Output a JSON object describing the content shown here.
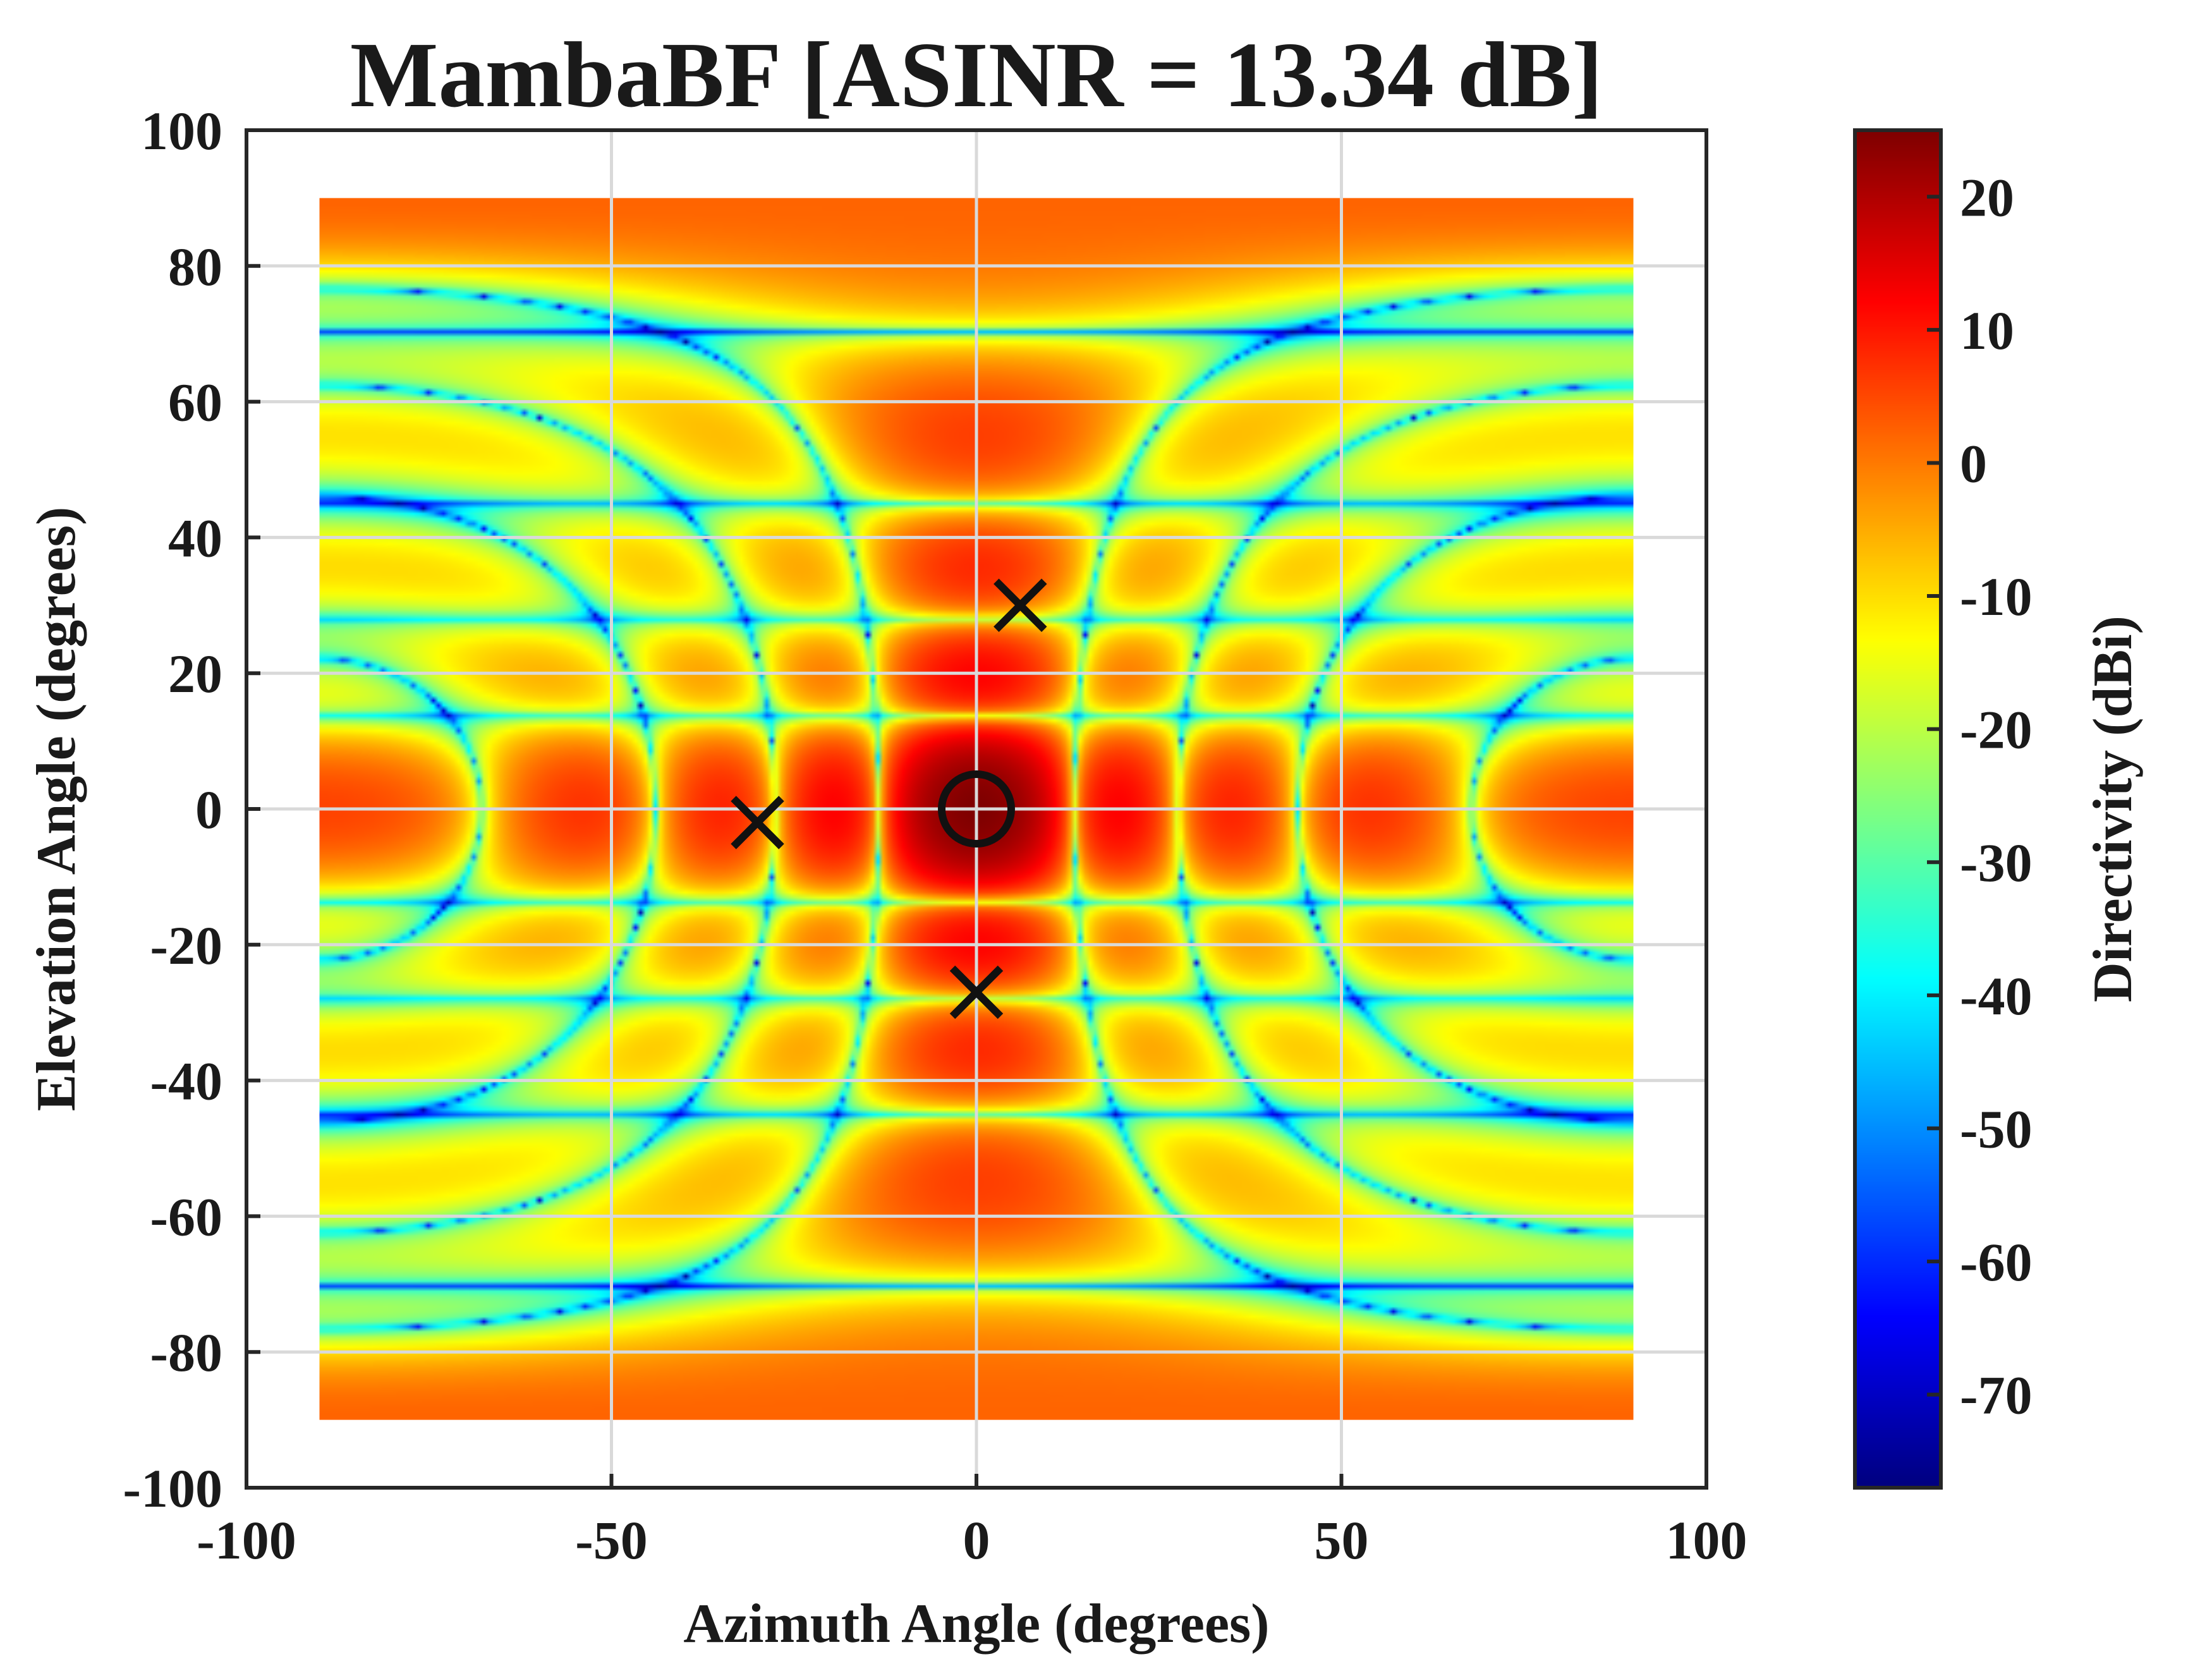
{
  "chart_data": {
    "type": "heatmap",
    "title": "MambaBF [ASINR = 13.34 dB]",
    "xlabel": "Azimuth Angle (degrees)",
    "ylabel": "Elevation Angle (degrees)",
    "xlim": [
      -100,
      100
    ],
    "ylim": [
      -100,
      100
    ],
    "x_ticks": [
      -100,
      -50,
      0,
      50,
      100
    ],
    "y_ticks": [
      -100,
      -80,
      -60,
      -40,
      -20,
      0,
      20,
      40,
      60,
      80,
      100
    ],
    "grid": true,
    "data_extent": {
      "azimuth": [
        -90,
        90
      ],
      "elevation": [
        -90,
        90
      ]
    },
    "colorbar": {
      "label": "Directivity (dBi)",
      "range": [
        -77,
        25
      ],
      "ticks": [
        20,
        10,
        0,
        -10,
        -20,
        -30,
        -40,
        -50,
        -60,
        -70
      ],
      "colormap": "jet",
      "colors": [
        "#00007f",
        "#0000ff",
        "#007fff",
        "#00ffff",
        "#7fff7f",
        "#ffff00",
        "#ff7f00",
        "#ff0000",
        "#7f0000"
      ]
    },
    "main_beam": {
      "azimuth": 0,
      "elevation": 0,
      "marker": "circle"
    },
    "interferers": [
      {
        "azimuth": 6,
        "elevation": 30,
        "marker": "x"
      },
      {
        "azimuth": -30,
        "elevation": -2,
        "marker": "x"
      },
      {
        "azimuth": 0,
        "elevation": -27,
        "marker": "x"
      }
    ]
  }
}
